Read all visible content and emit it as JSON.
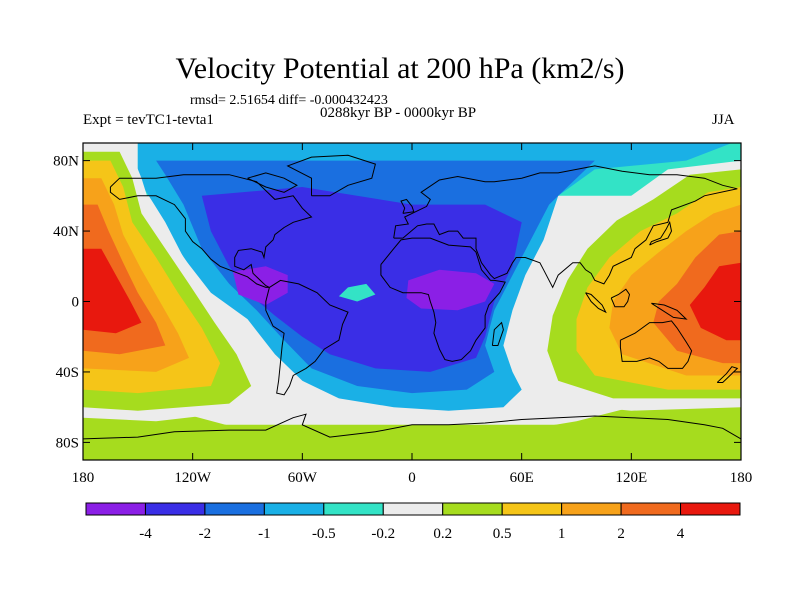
{
  "header": {
    "title": "Velocity Potential at 200 hPa (km2/s)",
    "stats": "rmsd= 2.51654 diff= -0.000432423",
    "period": "0288kyr BP - 0000kyr BP",
    "experiment": "Expt = tevTC1-tevta1",
    "season": "JJA"
  },
  "map": {
    "projection": "cylindrical-equidistant",
    "lon_range": [
      -180,
      180
    ],
    "lat_range": [
      -90,
      90
    ],
    "lat_labels": [
      {
        "value": 80,
        "text": "80N"
      },
      {
        "value": 40,
        "text": "40N"
      },
      {
        "value": 0,
        "text": "0"
      },
      {
        "value": -40,
        "text": "40S"
      },
      {
        "value": -80,
        "text": "80S"
      }
    ],
    "lon_labels": [
      {
        "value": -180,
        "text": "180"
      },
      {
        "value": -120,
        "text": "120W"
      },
      {
        "value": -60,
        "text": "60W"
      },
      {
        "value": 0,
        "text": "0"
      },
      {
        "value": 60,
        "text": "60E"
      },
      {
        "value": 120,
        "text": "120E"
      },
      {
        "value": 180,
        "text": "180"
      }
    ]
  },
  "colorbar": {
    "colors": [
      "#8b1fe6",
      "#3a2ee6",
      "#1a6fe0",
      "#1ab0e6",
      "#33e3c6",
      "#ececec",
      "#a6dc1e",
      "#f5c518",
      "#f7a21a",
      "#f06a1e",
      "#e8180e"
    ],
    "labels": [
      "-4",
      "-2",
      "-1",
      "-0.5",
      "-0.2",
      "0.2",
      "0.5",
      "1",
      "2",
      "4"
    ]
  },
  "chart_data": {
    "type": "heatmap",
    "title": "Velocity Potential at 200 hPa (km2/s)",
    "subtitle": "0288kyr BP - 0000kyr BP",
    "variable": "velocity potential difference at 200 hPa",
    "units": "km2/s",
    "season": "JJA",
    "levels": [
      -4,
      -2,
      -1,
      -0.5,
      -0.2,
      0.2,
      0.5,
      1,
      2,
      4
    ],
    "field_summary": [
      {
        "region": "central-eastern Pacific",
        "lon": -150,
        "lat": 0,
        "value": 4,
        "sign": "positive maximum"
      },
      {
        "region": "central America / Caribbean",
        "lon": -80,
        "lat": 5,
        "value": -4,
        "sign": "negative minimum"
      },
      {
        "region": "central Africa",
        "lon": 20,
        "lat": 5,
        "value": -4,
        "sign": "negative minimum"
      },
      {
        "region": "western Pacific / maritime continent",
        "lon": 140,
        "lat": 0,
        "value": 4,
        "sign": "positive maximum"
      },
      {
        "region": "Southern Ocean",
        "lon": 0,
        "lat": -65,
        "value": 0.2,
        "sign": "near zero to weak positive"
      }
    ]
  }
}
